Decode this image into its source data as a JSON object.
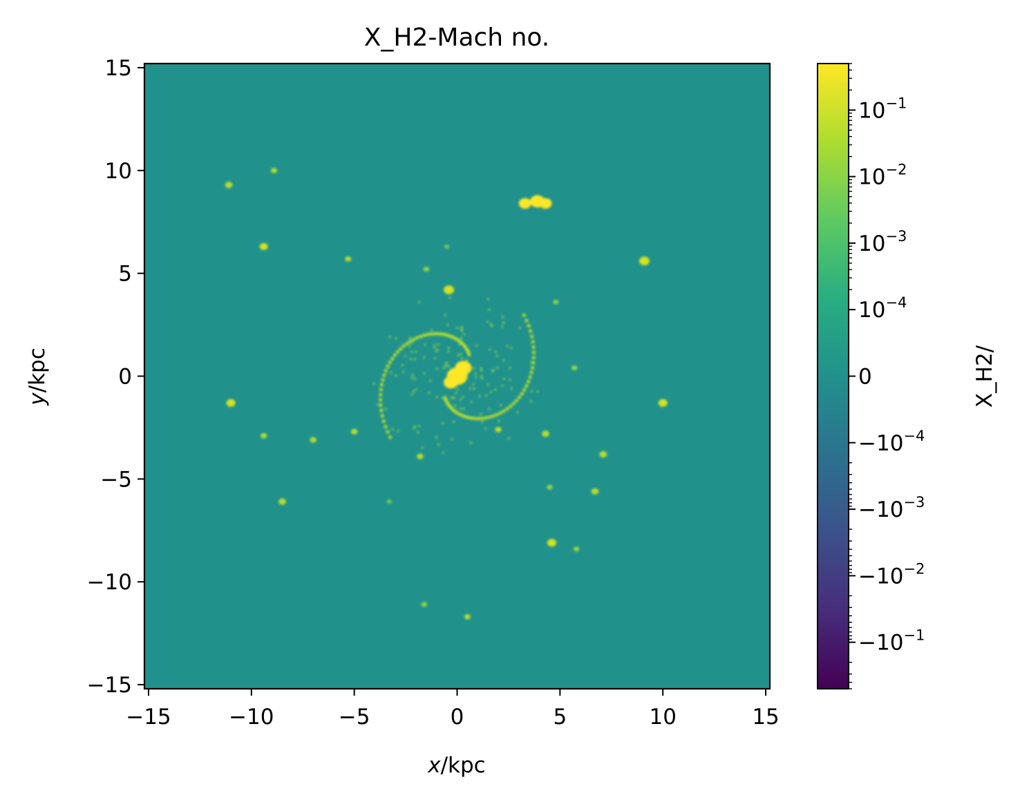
{
  "chart_data": {
    "type": "heatmap",
    "title": "X_H2-Mach no.",
    "xlabel": {
      "var": "x",
      "unit": "/kpc"
    },
    "ylabel": {
      "var": "y",
      "unit": "/kpc"
    },
    "xlim": [
      -15.2,
      15.2
    ],
    "ylim": [
      -15.2,
      15.2
    ],
    "xticks": [
      {
        "value": -15,
        "label": "−15"
      },
      {
        "value": -10,
        "label": "−10"
      },
      {
        "value": -5,
        "label": "−5"
      },
      {
        "value": 0,
        "label": "0"
      },
      {
        "value": 5,
        "label": "5"
      },
      {
        "value": 10,
        "label": "10"
      },
      {
        "value": 15,
        "label": "15"
      }
    ],
    "yticks": [
      {
        "value": 15,
        "label": "15"
      },
      {
        "value": 10,
        "label": "10"
      },
      {
        "value": 5,
        "label": "5"
      },
      {
        "value": 0,
        "label": "0"
      },
      {
        "value": -5,
        "label": "−5"
      },
      {
        "value": -10,
        "label": "−10"
      },
      {
        "value": -15,
        "label": "−15"
      }
    ],
    "background_value": 0,
    "colormap": "viridis",
    "colorbar": {
      "label": "X_H2/",
      "scale": "symlog",
      "linthresh": 0.0001,
      "range": [
        -0.5,
        0.5
      ],
      "ticks": [
        {
          "value": 0.1,
          "base": "10",
          "exp": "−1"
        },
        {
          "value": 0.01,
          "base": "10",
          "exp": "−2"
        },
        {
          "value": 0.001,
          "base": "10",
          "exp": "−3"
        },
        {
          "value": 0.0001,
          "base": "10",
          "exp": "−4"
        },
        {
          "value": 0,
          "base": "0",
          "exp": ""
        },
        {
          "value": -0.0001,
          "base": "−10",
          "exp": "−4"
        },
        {
          "value": -0.001,
          "base": "−10",
          "exp": "−3"
        },
        {
          "value": -0.01,
          "base": "−10",
          "exp": "−2"
        },
        {
          "value": -0.1,
          "base": "−10",
          "exp": "−1"
        }
      ]
    },
    "clumps": [
      {
        "x": 0.0,
        "y": 0.0,
        "value": 0.4
      },
      {
        "x": 0.3,
        "y": 0.4,
        "value": 0.3
      },
      {
        "x": -0.3,
        "y": -0.3,
        "value": 0.25
      },
      {
        "x": 3.9,
        "y": 8.5,
        "value": 0.25
      },
      {
        "x": 3.3,
        "y": 8.4,
        "value": 0.2
      },
      {
        "x": 4.3,
        "y": 8.4,
        "value": 0.2
      },
      {
        "x": 9.1,
        "y": 5.6,
        "value": 0.15
      },
      {
        "x": -0.4,
        "y": 4.2,
        "value": 0.15
      },
      {
        "x": -11.0,
        "y": -1.3,
        "value": 0.12
      },
      {
        "x": 10.0,
        "y": -1.3,
        "value": 0.12
      },
      {
        "x": -9.4,
        "y": 6.3,
        "value": 0.1
      },
      {
        "x": -11.1,
        "y": 9.3,
        "value": 0.08
      },
      {
        "x": -8.9,
        "y": 10.0,
        "value": 0.05
      },
      {
        "x": -5.3,
        "y": 5.7,
        "value": 0.05
      },
      {
        "x": 4.6,
        "y": -8.1,
        "value": 0.12
      },
      {
        "x": -8.5,
        "y": -6.1,
        "value": 0.08
      },
      {
        "x": 7.1,
        "y": -3.8,
        "value": 0.08
      },
      {
        "x": 6.7,
        "y": -5.6,
        "value": 0.08
      },
      {
        "x": 4.3,
        "y": -2.8,
        "value": 0.08
      },
      {
        "x": -7.0,
        "y": -3.1,
        "value": 0.06
      },
      {
        "x": -5.0,
        "y": -2.7,
        "value": 0.06
      },
      {
        "x": -9.4,
        "y": -2.9,
        "value": 0.05
      },
      {
        "x": 0.5,
        "y": -11.7,
        "value": 0.05
      },
      {
        "x": -1.6,
        "y": -11.1,
        "value": 0.04
      },
      {
        "x": 5.8,
        "y": -8.4,
        "value": 0.04
      },
      {
        "x": 5.7,
        "y": 0.4,
        "value": 0.04
      },
      {
        "x": 4.8,
        "y": 3.6,
        "value": 0.03
      },
      {
        "x": 4.5,
        "y": -5.4,
        "value": 0.04
      },
      {
        "x": -1.5,
        "y": 5.2,
        "value": 0.04
      },
      {
        "x": -0.5,
        "y": 6.3,
        "value": 0.02
      },
      {
        "x": -3.3,
        "y": -6.1,
        "value": 0.02
      },
      {
        "x": -1.8,
        "y": -3.9,
        "value": 0.06
      },
      {
        "x": 2.0,
        "y": -2.6,
        "value": 0.06
      }
    ],
    "spiral_arms": [
      {
        "r0": 1.2,
        "r1": 4.4,
        "theta0": 0.0,
        "winding": 0.42,
        "value": 0.06
      },
      {
        "r0": 1.2,
        "r1": 4.4,
        "theta0": 3.1416,
        "winding": 0.42,
        "value": 0.06
      }
    ]
  }
}
